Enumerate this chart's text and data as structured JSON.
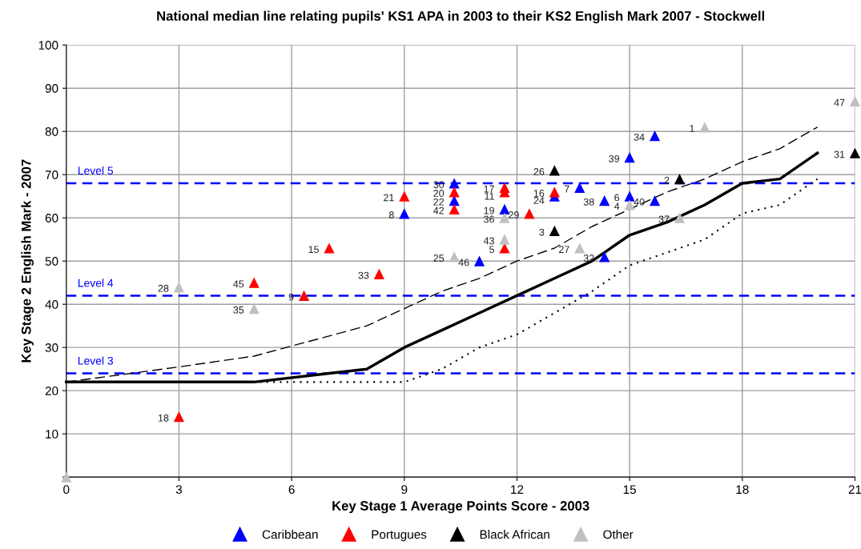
{
  "chart_data": {
    "type": "scatter",
    "title": "National median line relating pupils' KS1 APA in 2003 to their KS2 English Mark 2007 - Stockwell",
    "xlabel": "Key Stage 1 Average Points Score - 2003",
    "ylabel": "Key Stage 2 English Mark - 2007",
    "xlim": [
      0,
      21
    ],
    "xticks": [
      0,
      3,
      6,
      9,
      12,
      15,
      18,
      21
    ],
    "ylim": [
      0,
      100
    ],
    "yticks": [
      {
        "value": 0,
        "label": null
      },
      10,
      20,
      30,
      40,
      50,
      60,
      70,
      80,
      90,
      100
    ],
    "grid": true,
    "legend": "bottom",
    "marker": "triangle",
    "ref_lines": [
      {
        "axis": "y",
        "value": 68,
        "label": "Level 5",
        "color": "#0000ff",
        "line_style": "dashed"
      },
      {
        "axis": "y",
        "value": 42,
        "label": "Level 4",
        "color": "#0000ff",
        "line_style": "dashed"
      },
      {
        "axis": "y",
        "value": 24,
        "label": "Level 3",
        "color": "#0000ff",
        "line_style": "dashed"
      }
    ],
    "series": [
      {
        "type": "line",
        "color": "#000000",
        "line_style": "solid",
        "marker": "none",
        "x": [
          0,
          5,
          7,
          8,
          9,
          10,
          11,
          12,
          13,
          14,
          15,
          16,
          17,
          18,
          19,
          20
        ],
        "values": [
          22,
          22,
          24,
          25,
          30,
          34,
          38,
          42,
          46,
          50,
          56,
          59,
          63,
          68,
          69,
          75
        ]
      },
      {
        "type": "line",
        "color": "#000000",
        "line_style": "dashed",
        "marker": "none",
        "x": [
          0,
          3,
          5,
          8,
          9,
          10,
          11,
          12,
          13,
          14,
          15,
          16,
          17,
          18,
          19,
          20
        ],
        "values": [
          22,
          25.5,
          28,
          35,
          39,
          43,
          46,
          50,
          53,
          58,
          62,
          66,
          69,
          73,
          76,
          81
        ]
      },
      {
        "type": "line",
        "color": "#000000",
        "line_style": "dotted",
        "marker": "none",
        "x": [
          0,
          9,
          10,
          11,
          12,
          13,
          14,
          15,
          16,
          17,
          18,
          19,
          20
        ],
        "values": [
          22,
          22,
          25,
          30,
          33,
          38,
          43,
          49,
          52,
          55,
          61,
          63,
          69
        ]
      },
      {
        "name": "Caribbean",
        "color": "#0000ff",
        "x": [
          10.33,
          10.33,
          9,
          11.67,
          13,
          13.67,
          14.33,
          14.33,
          11,
          15,
          15.67,
          15,
          15.67
        ],
        "values": [
          68,
          64,
          61,
          62,
          65,
          67,
          64,
          51,
          50,
          74,
          79,
          65,
          64
        ]
      },
      {
        "name": "Portugues",
        "color": "#ff0000",
        "x": [
          9,
          10.33,
          10.33,
          11.67,
          11.67,
          12.33,
          11.67,
          13,
          7,
          8.33,
          5,
          6.33,
          3
        ],
        "values": [
          65,
          66,
          62,
          67,
          66,
          61,
          53,
          66,
          53,
          47,
          45,
          42,
          14
        ]
      },
      {
        "name": "Black African",
        "color": "#000000",
        "x": [
          13,
          13,
          16.33,
          21
        ],
        "values": [
          71,
          57,
          69,
          75
        ]
      },
      {
        "name": "Other",
        "color": "#c0c0c0",
        "x": [
          11.67,
          11.67,
          10.33,
          13.67,
          17,
          15,
          16.33,
          3,
          5,
          21,
          0
        ],
        "values": [
          60,
          55,
          51,
          53,
          81,
          63,
          60,
          44,
          39,
          87,
          0
        ]
      }
    ],
    "annotations": [
      {
        "text": "30",
        "x": 10.33,
        "y": 68
      },
      {
        "text": "22",
        "x": 10.33,
        "y": 64
      },
      {
        "text": "8",
        "x": 9,
        "y": 61
      },
      {
        "text": "19",
        "x": 11.67,
        "y": 62
      },
      {
        "text": "24",
        "x": 13,
        "y": 65
      },
      {
        "text": "7",
        "x": 13.67,
        "y": 67
      },
      {
        "text": "38",
        "x": 14.33,
        "y": 64
      },
      {
        "text": "32",
        "x": 14.33,
        "y": 51
      },
      {
        "text": "46",
        "x": 11,
        "y": 50
      },
      {
        "text": "39",
        "x": 15,
        "y": 74
      },
      {
        "text": "34",
        "x": 15.67,
        "y": 79
      },
      {
        "text": "6",
        "x": 15,
        "y": 65
      },
      {
        "text": "40",
        "x": 15.67,
        "y": 64
      },
      {
        "text": "21",
        "x": 9,
        "y": 65
      },
      {
        "text": "20",
        "x": 10.33,
        "y": 66
      },
      {
        "text": "42",
        "x": 10.33,
        "y": 62
      },
      {
        "text": "17",
        "x": 11.67,
        "y": 67
      },
      {
        "text": "11",
        "x": 11.67,
        "y": 66
      },
      {
        "text": "29",
        "x": 12.33,
        "y": 61
      },
      {
        "text": "5",
        "x": 11.67,
        "y": 53
      },
      {
        "text": "16",
        "x": 13,
        "y": 66
      },
      {
        "text": "15",
        "x": 7,
        "y": 53
      },
      {
        "text": "33",
        "x": 8.33,
        "y": 47
      },
      {
        "text": "45",
        "x": 5,
        "y": 45
      },
      {
        "text": "9",
        "x": 6.33,
        "y": 42
      },
      {
        "text": "18",
        "x": 3,
        "y": 14
      },
      {
        "text": "26",
        "x": 13,
        "y": 71
      },
      {
        "text": "3",
        "x": 13,
        "y": 57
      },
      {
        "text": "2",
        "x": 16.33,
        "y": 69
      },
      {
        "text": "31",
        "x": 21,
        "y": 75
      },
      {
        "text": "36",
        "x": 11.67,
        "y": 60
      },
      {
        "text": "43",
        "x": 11.67,
        "y": 55
      },
      {
        "text": "25",
        "x": 10.33,
        "y": 51
      },
      {
        "text": "27",
        "x": 13.67,
        "y": 53
      },
      {
        "text": "1",
        "x": 17,
        "y": 81
      },
      {
        "text": "4",
        "x": 15,
        "y": 63
      },
      {
        "text": "37",
        "x": 16.33,
        "y": 60
      },
      {
        "text": "28",
        "x": 3,
        "y": 44
      },
      {
        "text": "35",
        "x": 5,
        "y": 39
      },
      {
        "text": "47",
        "x": 21,
        "y": 87
      }
    ]
  }
}
